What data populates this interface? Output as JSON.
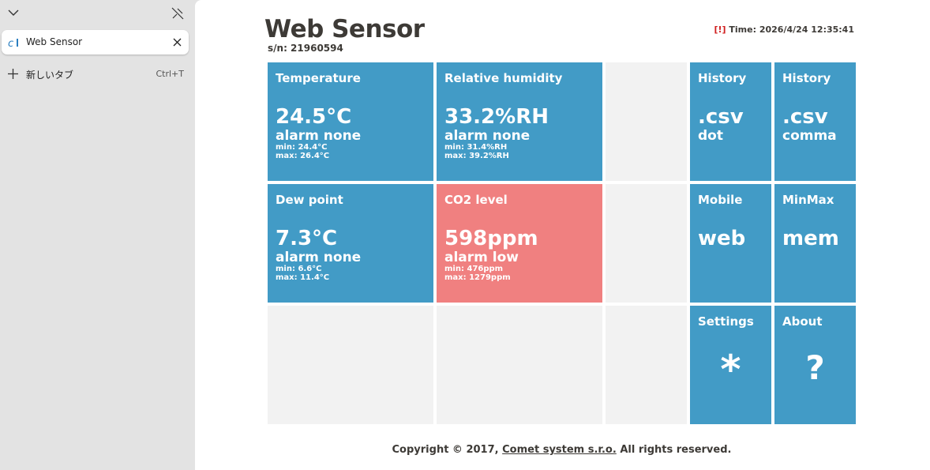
{
  "browser": {
    "tab_title": "Web Sensor",
    "new_tab": "新しいタブ",
    "new_tab_shortcut": "Ctrl+T"
  },
  "header": {
    "title": "Web Sensor",
    "serial": "s/n: 21960594",
    "alert": "[!]",
    "time": "Time: 2026/4/24 12:35:41"
  },
  "tiles": [
    {
      "label": "Temperature",
      "value": "24.5°C",
      "status": "alarm none",
      "min": "min: 24.4°C",
      "max": "max: 26.4°C"
    },
    {
      "label": "Relative humidity",
      "value": "33.2%RH",
      "status": "alarm none",
      "min": "min: 31.4%RH",
      "max": "max: 39.2%RH"
    },
    {
      "label": "Dew point",
      "value": "7.3°C",
      "status": "alarm none",
      "min": "min: 6.6°C",
      "max": "max: 11.4°C"
    },
    {
      "label": "CO2 level",
      "value": "598ppm",
      "status": "alarm low",
      "min": "min: 476ppm",
      "max": "max: 1279ppm"
    }
  ],
  "links": [
    {
      "label": "History",
      "value": ".csv",
      "sub": "dot"
    },
    {
      "label": "History",
      "value": ".csv",
      "sub": "comma"
    },
    {
      "label": "Mobile",
      "value": "web"
    },
    {
      "label": "MinMax",
      "value": "mem"
    },
    {
      "label": "Settings",
      "value": "*"
    },
    {
      "label": "About",
      "value": "?"
    }
  ],
  "footer": {
    "prefix": "Copyright © 2017,",
    "link": "Comet system s.r.o.",
    "suffix": "All rights reserved."
  }
}
